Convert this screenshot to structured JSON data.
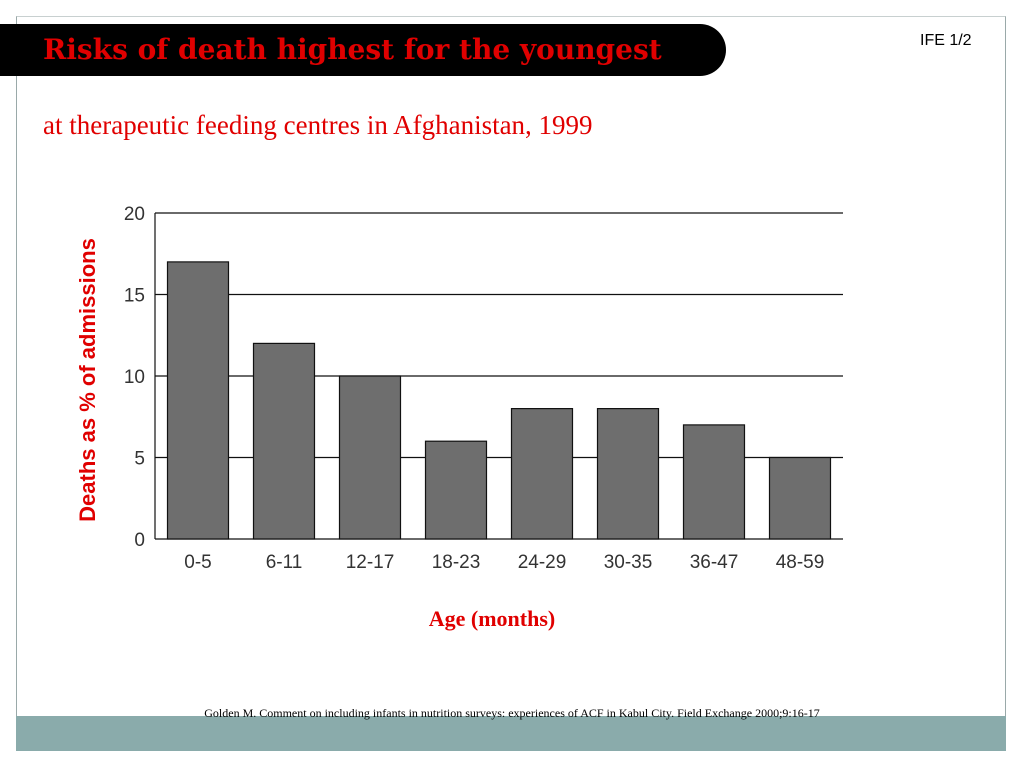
{
  "slide": {
    "title": "Risks of death highest for the youngest",
    "subtitle": "at therapeutic feeding centres in Afghanistan, 1999",
    "slide_number": "IFE 1/2",
    "source": "Golden M. Comment on including infants in nutrition surveys: experiences of ACF in Kabul City. Field Exchange 2000;9:16-17",
    "colors": {
      "title_bar": "#000000",
      "accent_red": "#e00000",
      "footer_band": "#8aabab"
    }
  },
  "chart_data": {
    "type": "bar",
    "categories": [
      "0-5",
      "6-11",
      "12-17",
      "18-23",
      "24-29",
      "30-35",
      "36-47",
      "48-59"
    ],
    "values": [
      17,
      12,
      10,
      6,
      8,
      8,
      7,
      5
    ],
    "title": "",
    "xlabel": "Age (months)",
    "ylabel": "Deaths as % of admissions",
    "ylim": [
      0,
      20
    ],
    "yticks": [
      "0",
      "5",
      "10",
      "15",
      "20"
    ],
    "grid": true,
    "legend": "none",
    "bar_color": "#6e6e6e"
  }
}
